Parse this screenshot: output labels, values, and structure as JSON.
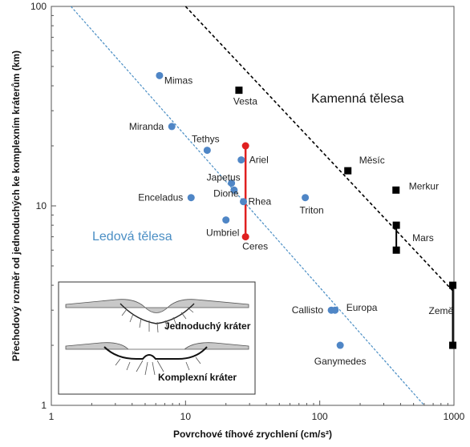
{
  "chart_data": {
    "type": "scatter",
    "title": "",
    "xlabel": "Povrchové tíhové zrychlení (cm/s²)",
    "ylabel": "Přechodový rozměr od jednoduchých ke komplexním kráterům (km)",
    "xscale": "log",
    "yscale": "log",
    "xlim": [
      1,
      1000
    ],
    "ylim": [
      1,
      100
    ],
    "x_ticks": [
      "1",
      "10",
      "100",
      "1000"
    ],
    "y_ticks": [
      "1",
      "10",
      "100"
    ],
    "grid": false,
    "series": [
      {
        "group": "icy",
        "marker": "circle",
        "color": "#4f86c6",
        "points": [
          {
            "label": "Mimas",
            "x": 6.4,
            "y": 45
          },
          {
            "label": "Miranda",
            "x": 7.9,
            "y": 25
          },
          {
            "label": "Tethys",
            "x": 14.5,
            "y": 19
          },
          {
            "label": "Ariel",
            "x": 26,
            "y": 17
          },
          {
            "label": "Japetus",
            "x": 22,
            "y": 13
          },
          {
            "label": "Dione",
            "x": 23,
            "y": 12
          },
          {
            "label": "Enceladus",
            "x": 11,
            "y": 11
          },
          {
            "label": "Rhea",
            "x": 27,
            "y": 10.5
          },
          {
            "label": "Triton",
            "x": 78,
            "y": 11
          },
          {
            "label": "Umbriel",
            "x": 20,
            "y": 8.5
          },
          {
            "label": "Callisto",
            "x": 122,
            "y": 3
          },
          {
            "label": "Europa",
            "x": 130,
            "y": 3
          },
          {
            "label": "Ganymedes",
            "x": 142,
            "y": 2
          }
        ]
      },
      {
        "group": "rocky",
        "marker": "square",
        "color": "#000000",
        "points": [
          {
            "label": "Vesta",
            "x": 25,
            "y": 38
          },
          {
            "label": "Měsíc",
            "x": 162,
            "y": 15
          },
          {
            "label": "Merkur",
            "x": 370,
            "y": 12
          },
          {
            "label": "Mars",
            "x": 372,
            "y": 8
          },
          {
            "label": "",
            "x": 372,
            "y": 6
          },
          {
            "label": "Země",
            "x": 980,
            "y": 4
          },
          {
            "label": "",
            "x": 980,
            "y": 2
          }
        ]
      },
      {
        "group": "ceres",
        "marker": "circle",
        "color": "#e02020",
        "points": [
          {
            "label": "Ceres",
            "x": 28,
            "y": 7
          },
          {
            "label": "",
            "x": 28,
            "y": 20
          }
        ]
      }
    ],
    "ranges": [
      {
        "name": "Ceres",
        "x": 28,
        "y": [
          7,
          20
        ],
        "color": "#e02020"
      },
      {
        "name": "Mars",
        "x": 372,
        "y": [
          6,
          8
        ],
        "color": "#000000"
      },
      {
        "name": "Země",
        "x": 980,
        "y": [
          2,
          4
        ],
        "color": "#000000"
      }
    ],
    "trendlines": [
      {
        "name": "icy-trend",
        "color": "#4a8ec4",
        "style": "dashed",
        "points": [
          {
            "x": 1.4,
            "y": 100
          },
          {
            "x": 600,
            "y": 1
          }
        ]
      },
      {
        "name": "rocky-trend",
        "color": "#000000",
        "style": "dashed",
        "points": [
          {
            "x": 10,
            "y": 100
          },
          {
            "x": 1000,
            "y": 3.7
          }
        ]
      }
    ],
    "group_labels": {
      "icy": "Ledová tělesa",
      "rocky": "Kamenná tělesa"
    },
    "inset": {
      "simple_label": "Jednoduchý kráter",
      "complex_label": "Komplexní kráter"
    }
  }
}
